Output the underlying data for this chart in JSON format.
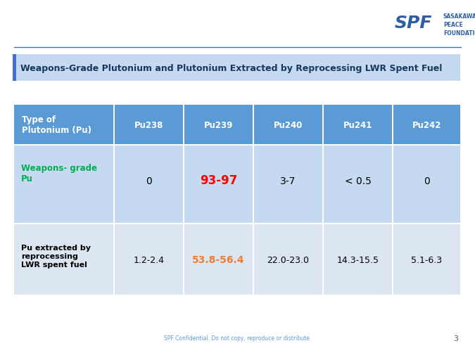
{
  "title": "Weapons-Grade Plutonium and Plutonium Extracted by Reprocessing LWR Spent Fuel",
  "col_headers": [
    "Type of\nPlutonium (Pu)",
    "Pu238",
    "Pu239",
    "Pu240",
    "Pu241",
    "Pu242"
  ],
  "row1_label": "Weapons- grade\nPu",
  "row1_values": [
    "0",
    "93-97",
    "3-7",
    "< 0.5",
    "0"
  ],
  "row2_label": "Pu extracted by\nreprocessing\nLWR spent fuel",
  "row2_values": [
    "1.2-2.4",
    "53.8-56.4",
    "22.0-23.0",
    "14.3-15.5",
    "5.1-6.3"
  ],
  "header_bg": "#5B9BD5",
  "row1_bg": "#C5D9F1",
  "row2_bg": "#DCE6F1",
  "title_bg": "#C5D9F1",
  "title_border_color": "#4472C4",
  "header_text_color": "#FFFFFF",
  "row1_label_color": "#00B050",
  "row2_label_color": "#000000",
  "row1_normal_color": "#000000",
  "row1_highlight_color": "#FF0000",
  "row2_normal_color": "#000000",
  "row2_highlight_color": "#ED7D31",
  "highlight_col": 1,
  "footer_text": "SPF Confidential. Do not copy, reproduce or distribute.",
  "page_num": "3",
  "bg_color": "#FFFFFF",
  "separator_color": "#4472C4",
  "logo_text_color": "#2E5FA3",
  "fig_width": 6.75,
  "fig_height": 5.06,
  "dpi": 100,
  "title_font_color": "#17375E"
}
